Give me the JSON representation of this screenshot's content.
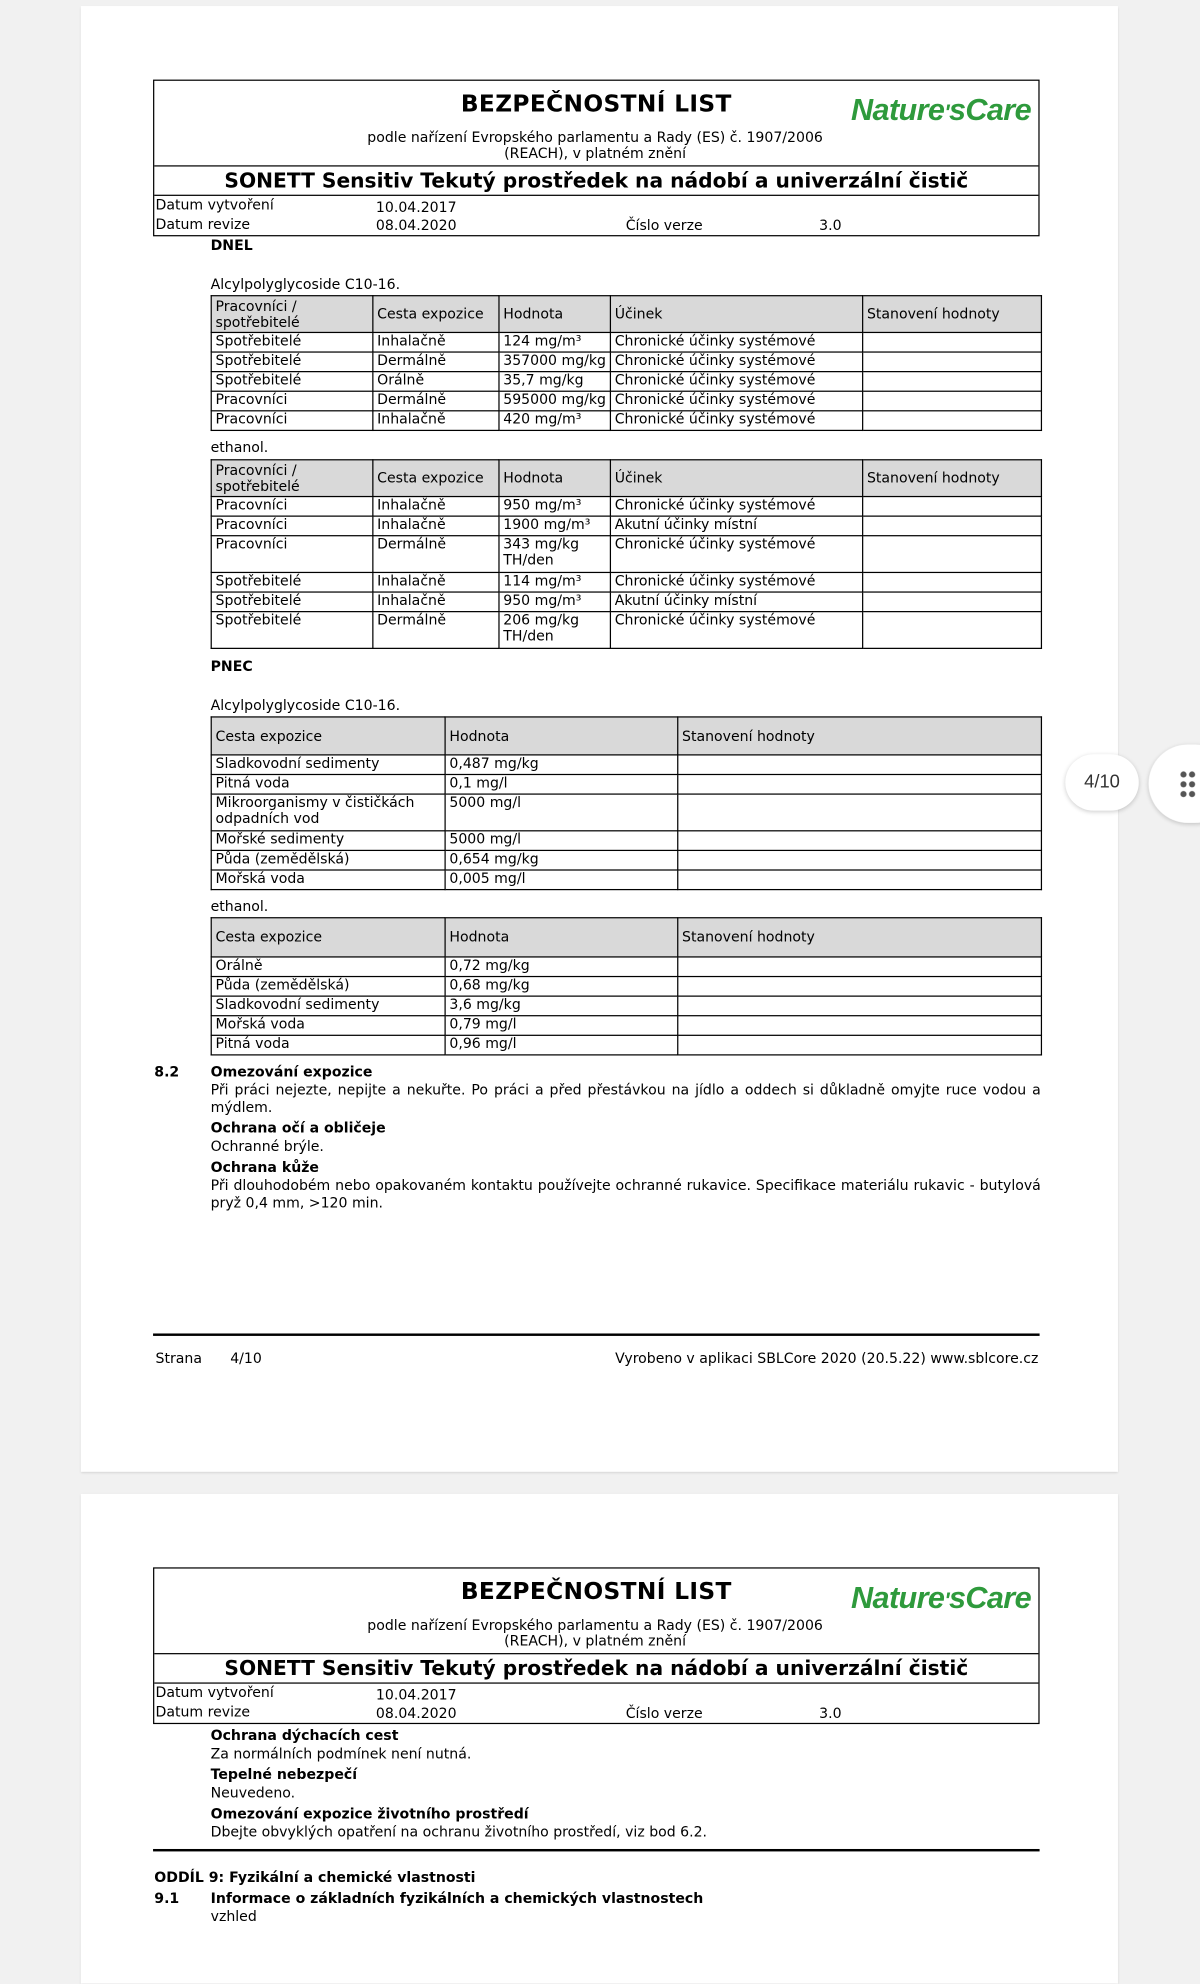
{
  "viewer": {
    "page_indicator": "4/10",
    "menu_icon": "grid-dots-icon"
  },
  "header": {
    "title": "BEZPEČNOSTNÍ LIST",
    "subtitle1": "podle nařízení Evropského parlamentu a Rady (ES) č. 1907/2006",
    "subtitle2": "(REACH), v platném znění",
    "logo": "Nature'sCare",
    "logo_color": "#2e9a3c",
    "product": "SONETT Sensitiv Tekutý prostředek na nádobí a univerzální čistič",
    "created_label": "Datum vytvoření",
    "created": "10.04.2017",
    "revision_label": "Datum revize",
    "revision": "08.04.2020",
    "version_label": "Číslo verze",
    "version": "3.0"
  },
  "page4": {
    "dnel_heading": "DNEL",
    "dnel_sub1": "Alcylpolyglycoside C10-16.",
    "dnel_headers": [
      "Pracovníci / spotřebitelé",
      "Cesta expozice",
      "Hodnota",
      "Účinek",
      "Stanovení hodnoty"
    ],
    "dnel_rows1": [
      [
        "Spotřebitelé",
        "Inhalačně",
        "124 mg/m³",
        "Chronické účinky systémové",
        ""
      ],
      [
        "Spotřebitelé",
        "Dermálně",
        "357000 mg/kg",
        "Chronické účinky systémové",
        ""
      ],
      [
        "Spotřebitelé",
        "Orálně",
        "35,7 mg/kg",
        "Chronické účinky systémové",
        ""
      ],
      [
        "Pracovníci",
        "Dermálně",
        "595000 mg/kg",
        "Chronické účinky systémové",
        ""
      ],
      [
        "Pracovníci",
        "Inhalačně",
        "420 mg/m³",
        "Chronické účinky systémové",
        ""
      ]
    ],
    "dnel_sub2": "ethanol.",
    "dnel_rows2": [
      [
        "Pracovníci",
        "Inhalačně",
        "950 mg/m³",
        "Chronické účinky systémové",
        ""
      ],
      [
        "Pracovníci",
        "Inhalačně",
        "1900 mg/m³",
        "Akutní účinky místní",
        ""
      ],
      [
        "Pracovníci",
        "Dermálně",
        "343 mg/kg TH/den",
        "Chronické účinky systémové",
        ""
      ],
      [
        "Spotřebitelé",
        "Inhalačně",
        "114 mg/m³",
        "Chronické účinky systémové",
        ""
      ],
      [
        "Spotřebitelé",
        "Inhalačně",
        "950 mg/m³",
        "Akutní účinky místní",
        ""
      ],
      [
        "Spotřebitelé",
        "Dermálně",
        "206 mg/kg TH/den",
        "Chronické účinky systémové",
        ""
      ]
    ],
    "pnec_heading": "PNEC",
    "pnec_sub1": "Alcylpolyglycoside C10-16.",
    "pnec_headers": [
      "Cesta expozice",
      "Hodnota",
      "Stanovení hodnoty"
    ],
    "pnec_rows1": [
      [
        "Sladkovodní sedimenty",
        "0,487 mg/kg",
        ""
      ],
      [
        "Pitná voda",
        "0,1 mg/l",
        ""
      ],
      [
        "Mikroorganismy v čističkách odpadních vod",
        "5000 mg/l",
        ""
      ],
      [
        "Mořské sedimenty",
        "5000 mg/l",
        ""
      ],
      [
        "Půda (zemědělská)",
        "0,654 mg/kg",
        ""
      ],
      [
        "Mořská voda",
        "0,005 mg/l",
        ""
      ]
    ],
    "pnec_sub2": "ethanol.",
    "pnec_rows2": [
      [
        "Orálně",
        "0,72 mg/kg",
        ""
      ],
      [
        "Půda (zemědělská)",
        "0,68 mg/kg",
        ""
      ],
      [
        "Sladkovodní sedimenty",
        "3,6 mg/kg",
        ""
      ],
      [
        "Mořská voda",
        "0,79 mg/l",
        ""
      ],
      [
        "Pitná voda",
        "0,96 mg/l",
        ""
      ]
    ],
    "s82_num": "8.2",
    "s82_title": "Omezování expozice",
    "s82_text": "Při práci nejezte, nepijte a nekuřte. Po práci a před přestávkou na jídlo a oddech si důkladně omyjte ruce vodou a mýdlem.",
    "eyes_title": "Ochrana očí a obličeje",
    "eyes_text": "Ochranné brýle.",
    "skin_title": "Ochrana kůže",
    "skin_text": "Při dlouhodobém nebo opakovaném kontaktu používejte ochranné rukavice. Specifikace materiálu rukavic - butylová pryž 0,4 mm, >120 min.",
    "footer_label": "Strana",
    "footer_page": "4/10",
    "footer_right": "Vyrobeno v aplikaci SBLCore 2020 (20.5.22) www.sblcore.cz"
  },
  "page5": {
    "resp_title": "Ochrana dýchacích cest",
    "resp_text": "Za normálních podmínek není nutná.",
    "heat_title": "Tepelné nebezpečí",
    "heat_text": "Neuvedeno.",
    "env_title": "Omezování expozice životního prostředí",
    "env_text": "Dbejte obvyklých opatření na ochranu životního prostředí, viz bod 6.2.",
    "sec9": "ODDÍL 9: Fyzikální a chemické vlastnosti",
    "s91_num": "9.1",
    "s91_title": "Informace o základních fyzikálních a chemických vlastnostech",
    "appearance": "vzhled"
  }
}
